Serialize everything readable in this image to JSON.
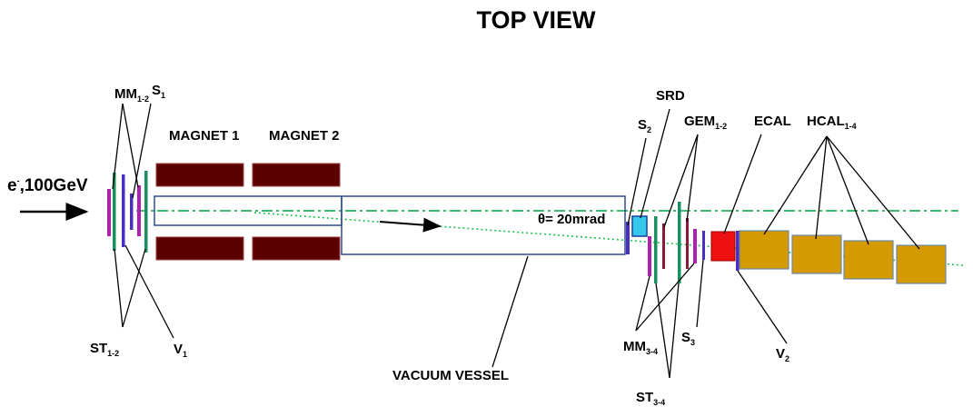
{
  "title": "TOP VIEW",
  "beam": {
    "label": "e",
    "sup": "-",
    "energy": ",100GeV"
  },
  "labels": {
    "mm12": {
      "main": "MM",
      "sub": "1-2"
    },
    "s1": {
      "main": "S",
      "sub": "1"
    },
    "st12": {
      "main": "ST",
      "sub": "1-2"
    },
    "v1": {
      "main": "V",
      "sub": "1"
    },
    "magnet1": "MAGNET 1",
    "magnet2": "MAGNET 2",
    "vacuum_vessel": "VACUUM VESSEL",
    "theta": "θ= 20mrad",
    "srd": "SRD",
    "s2": {
      "main": "S",
      "sub": "2"
    },
    "gem12": {
      "main": "GEM",
      "sub": "1-2"
    },
    "ecal": "ECAL",
    "hcal14": {
      "main": "HCAL",
      "sub": "1-4"
    },
    "mm34": {
      "main": "MM",
      "sub": "3-4"
    },
    "st34": {
      "main": "ST",
      "sub": "3-4"
    },
    "s3": {
      "main": "S",
      "sub": "3"
    },
    "v2": {
      "main": "V",
      "sub": "2"
    }
  },
  "colors": {
    "magnet": "#5a0000",
    "vessel": "#2f4f8f",
    "beam_line": "#00a040",
    "straw_tube": "#1a9060",
    "micromegas": "#b020b0",
    "veto": "#4a2fc0",
    "srd": "#35c8e8",
    "ecal": "#ee1111",
    "hcal": "#d49a00"
  }
}
